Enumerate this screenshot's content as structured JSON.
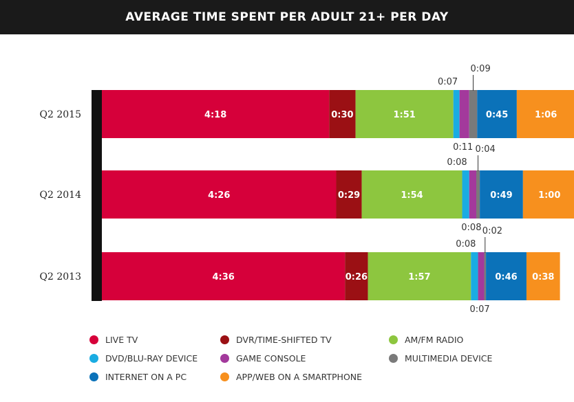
{
  "chart_data": {
    "type": "bar",
    "orientation": "horizontal",
    "stacked": true,
    "title": "AVERAGE TIME SPENT PER ADULT 21+ PER DAY",
    "units": "hours:minutes",
    "categories": [
      "Q2 2015",
      "Q2 2014",
      "Q2 2013"
    ],
    "series": [
      {
        "name": "LIVE TV",
        "color": "#d6003a",
        "values": [
          "4:18",
          "4:26",
          "4:36"
        ]
      },
      {
        "name": "DVR/TIME-SHIFTED TV",
        "color": "#9b1014",
        "values": [
          "0:30",
          "0:29",
          "0:26"
        ]
      },
      {
        "name": "AM/FM RADIO",
        "color": "#8dc63f",
        "values": [
          "1:51",
          "1:54",
          "1:57"
        ]
      },
      {
        "name": "DVD/BLU-RAY DEVICE",
        "color": "#1aace2",
        "values": [
          "0:07",
          "0:08",
          "0:08"
        ]
      },
      {
        "name": "GAME CONSOLE",
        "color": "#a3399c",
        "values": [
          "0:11",
          "0:08",
          "0:07"
        ]
      },
      {
        "name": "MULTIMEDIA DEVICE",
        "color": "#7a7a7a",
        "values": [
          "0:09",
          "0:04",
          "0:02"
        ]
      },
      {
        "name": "INTERNET ON A PC",
        "color": "#0b72b9",
        "values": [
          "0:45",
          "0:49",
          "0:46"
        ]
      },
      {
        "name": "APP/WEB ON A SMARTPHONE",
        "color": "#f7901e",
        "values": [
          "1:06",
          "1:00",
          "0:38"
        ]
      }
    ],
    "legend_position": "bottom",
    "grid": false
  }
}
